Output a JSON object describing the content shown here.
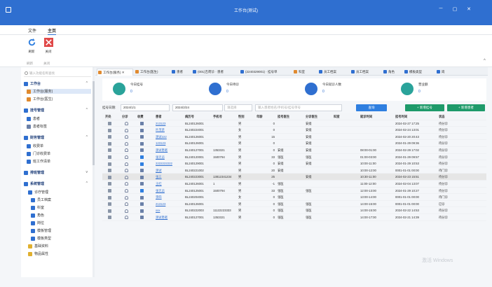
{
  "window": {
    "title": "工作台(测试)",
    "controls": {
      "minimize": "─",
      "maximize": "▢",
      "close": "✕"
    }
  },
  "menu": {
    "items": [
      "文件",
      "主页"
    ]
  },
  "ribbon": {
    "refresh_label": "刷新",
    "close_label": "关闭",
    "group_refresh": "刷新",
    "group_close": "关闭"
  },
  "sidebar": {
    "search_placeholder": "输入功能名称查找",
    "sections": [
      {
        "label": "工作台",
        "color": "#2f6fd0"
      },
      {
        "label": "挂号管理",
        "color": "#2f6fd0"
      },
      {
        "label": "财务管理",
        "color": "#2f6fd0"
      },
      {
        "label": "排班管理",
        "color": "#2f6fd0"
      },
      {
        "label": "系统管理",
        "color": "#2f6fd0"
      }
    ],
    "items": [
      {
        "label": "工作台(服务)"
      },
      {
        "label": "工作台(医生)"
      },
      {
        "label": "患者"
      },
      {
        "label": "患者标签"
      },
      {
        "label": "收费单"
      },
      {
        "label": "门诊收费单"
      },
      {
        "label": "班工作清单"
      },
      {
        "label": "诊疗管理"
      },
      {
        "label": "员工档案"
      },
      {
        "label": "科室"
      },
      {
        "label": "角色"
      },
      {
        "label": "岗位"
      },
      {
        "label": "模板管理"
      },
      {
        "label": "模板类型"
      },
      {
        "label": "基础资料"
      },
      {
        "label": "物品属性"
      }
    ]
  },
  "tabs": [
    {
      "label": "工作台(服务)",
      "color": "#e08a2f",
      "closable": true
    },
    {
      "label": "工作台(医生)",
      "color": "#e08a2f"
    },
    {
      "label": "患者",
      "color": "#2f6fd0"
    },
    {
      "label": "(001)吉荷诊 · 患者",
      "color": "#2f6fd0"
    },
    {
      "label": "(2240329001) · 挂号单",
      "color": "#2f6fd0"
    },
    {
      "label": "科室",
      "color": "#e08a2f"
    },
    {
      "label": "员工档案",
      "color": "#2f6fd0"
    },
    {
      "label": "员工档案",
      "color": "#2f6fd0"
    },
    {
      "label": "角色",
      "color": "#2f6fd0"
    },
    {
      "label": "模板类型",
      "color": "#2f6fd0"
    },
    {
      "label": "岗",
      "color": "#2f6fd0"
    }
  ],
  "stats": [
    {
      "label": "今日挂号",
      "value": "0",
      "color": "#2aa39a",
      "icon": "register-icon"
    },
    {
      "label": "今日待诊",
      "value": "0",
      "color": "#2f6fd0",
      "icon": "waiting-icon"
    },
    {
      "label": "今日就诊人数",
      "value": "0",
      "color": "#2f6fd0",
      "icon": "patients-icon"
    },
    {
      "label": "营业额",
      "value": "0",
      "color": "#2aa39a",
      "icon": "revenue-icon"
    }
  ],
  "filter": {
    "label": "挂号日期:",
    "date_from": "2024/1/1",
    "date_to": "2024/2/24",
    "status_placeholder": "请选择",
    "keyword_placeholder": "输入患者姓名/手机号/挂号单号",
    "search_label": "查询",
    "new_patient_label": "+ 新增挂号",
    "new_visit_label": "+ 新增患者"
  },
  "table": {
    "columns": [
      "开处",
      "分诊",
      "收费",
      "患者",
      "病历号",
      "手机号",
      "性别",
      "年龄",
      "挂号医生",
      "分诊医生",
      "科室",
      "就诊时间",
      "挂号时间",
      "状态"
    ],
    "rows": [
      {
        "name": "213123",
        "id": "BL240126001",
        "phone": "",
        "sex": "男",
        "age": "0",
        "reg_doc": "",
        "tri_doc": "安缇",
        "dept": "",
        "visit": "",
        "reg_time": "2024-02-27 17:25",
        "status": "待分诊",
        "bill_blue": false,
        "sel": false
      },
      {
        "name": "叶茂茶",
        "id": "BL240224001",
        "phone": "",
        "sex": "女",
        "age": "0",
        "reg_doc": "",
        "tri_doc": "安缇",
        "dept": "",
        "visit": "",
        "reg_time": "2024-02-24 13:01",
        "status": "待分诊",
        "bill_blue": false,
        "sel": false
      },
      {
        "name": "测试222",
        "id": "BL240126001",
        "phone": "",
        "sex": "男",
        "age": "15",
        "reg_doc": "",
        "tri_doc": "安缇",
        "dept": "",
        "visit": "",
        "reg_time": "2024-02-20 20:43",
        "status": "待分诊",
        "bill_blue": false,
        "sel": false
      },
      {
        "name": "123123",
        "id": "BL240126001",
        "phone": "",
        "sex": "男",
        "age": "0",
        "reg_doc": "",
        "tri_doc": "安缇",
        "dept": "",
        "visit": "",
        "reg_time": "2024-01-29 09:36",
        "status": "待分诊",
        "bill_blue": false,
        "sel": false
      },
      {
        "name": "测试患者",
        "id": "BL240127001",
        "phone": "1353321",
        "sex": "男",
        "age": "0",
        "reg_doc": "安缇",
        "tri_doc": "安缇",
        "dept": "",
        "visit": "08:00-01:00",
        "reg_time": "2024-02-29 17:02",
        "status": "待分诊",
        "bill_blue": false,
        "sel": false
      },
      {
        "name": "张无忌",
        "id": "BL240120001",
        "phone": "1500794",
        "sex": "男",
        "age": "33",
        "reg_doc": "张医",
        "tri_doc": "张医",
        "dept": "",
        "visit": "01:00-03:00",
        "reg_time": "2024-01-29 09:57",
        "status": "待分诊",
        "bill_blue": true,
        "sel": false
      },
      {
        "name": "2222222222",
        "id": "BL240129001",
        "phone": "",
        "sex": "男",
        "age": "0",
        "reg_doc": "安缇",
        "tri_doc": "安缇",
        "dept": "",
        "visit": "10:00-11:00",
        "reg_time": "2024-01-29 10:53",
        "status": "待分诊",
        "bill_blue": true,
        "sel": false
      },
      {
        "name": "测试",
        "id": "BL240221002",
        "phone": "",
        "sex": "男",
        "age": "20",
        "reg_doc": "安缇",
        "tri_doc": "",
        "dept": "",
        "visit": "10:00-12:00",
        "reg_time": "0001-01-01 00:00",
        "status": "待门诊",
        "bill_blue": false,
        "sel": false
      },
      {
        "name": "张三",
        "id": "BL240223001",
        "phone": "13812341234",
        "sex": "男",
        "age": "25",
        "reg_doc": "",
        "tri_doc": "安缇",
        "dept": "",
        "visit": "10:30-11:00",
        "reg_time": "2024-02-23 15:51",
        "status": "待分诊",
        "bill_blue": false,
        "sel": true
      },
      {
        "name": "王红",
        "id": "BL240126001",
        "phone": "1",
        "sex": "男",
        "age": "-1",
        "reg_doc": "张医",
        "tri_doc": "",
        "dept": "",
        "visit": "11:00-12:00",
        "reg_time": "2024-02-04 13:07",
        "status": "待分诊",
        "bill_blue": false,
        "sel": false
      },
      {
        "name": "张无忌",
        "id": "BL240125001",
        "phone": "1500794",
        "sex": "男",
        "age": "33",
        "reg_doc": "张医",
        "tri_doc": "张医",
        "dept": "",
        "visit": "12:00-13:00",
        "reg_time": "2024-01-29 10:27",
        "status": "待分诊",
        "bill_blue": true,
        "sel": false
      },
      {
        "name": "李四",
        "id": "BL240204001",
        "phone": "",
        "sex": "女",
        "age": "0",
        "reg_doc": "张医",
        "tri_doc": "",
        "dept": "",
        "visit": "13:00-14:00",
        "reg_time": "0001-01-01 00:00",
        "status": "待门诊",
        "bill_blue": false,
        "sel": false
      },
      {
        "name": "213123",
        "id": "BL240126001",
        "phone": "",
        "sex": "男",
        "age": "0",
        "reg_doc": "张医",
        "tri_doc": "张医",
        "dept": "",
        "visit": "14:00-15:00",
        "reg_time": "0001-01-01 00:00",
        "status": "已诊",
        "bill_blue": false,
        "sel": false
      },
      {
        "name": "xxx",
        "id": "BL240222003",
        "phone": "11122223333",
        "sex": "男",
        "age": "0",
        "reg_doc": "张医",
        "tri_doc": "张医",
        "dept": "",
        "visit": "14:00-15:00",
        "reg_time": "2024-02-22 14:53",
        "status": "待分诊",
        "bill_blue": false,
        "sel": false
      },
      {
        "name": "测试患者",
        "id": "BL240127001",
        "phone": "1353321",
        "sex": "男",
        "age": "0",
        "reg_doc": "张医",
        "tri_doc": "张医",
        "dept": "",
        "visit": "14:00-17:00",
        "reg_time": "2024-02-21 14:39",
        "status": "待分诊",
        "bill_blue": false,
        "sel": false
      }
    ]
  },
  "watermark": "激活 Windows"
}
